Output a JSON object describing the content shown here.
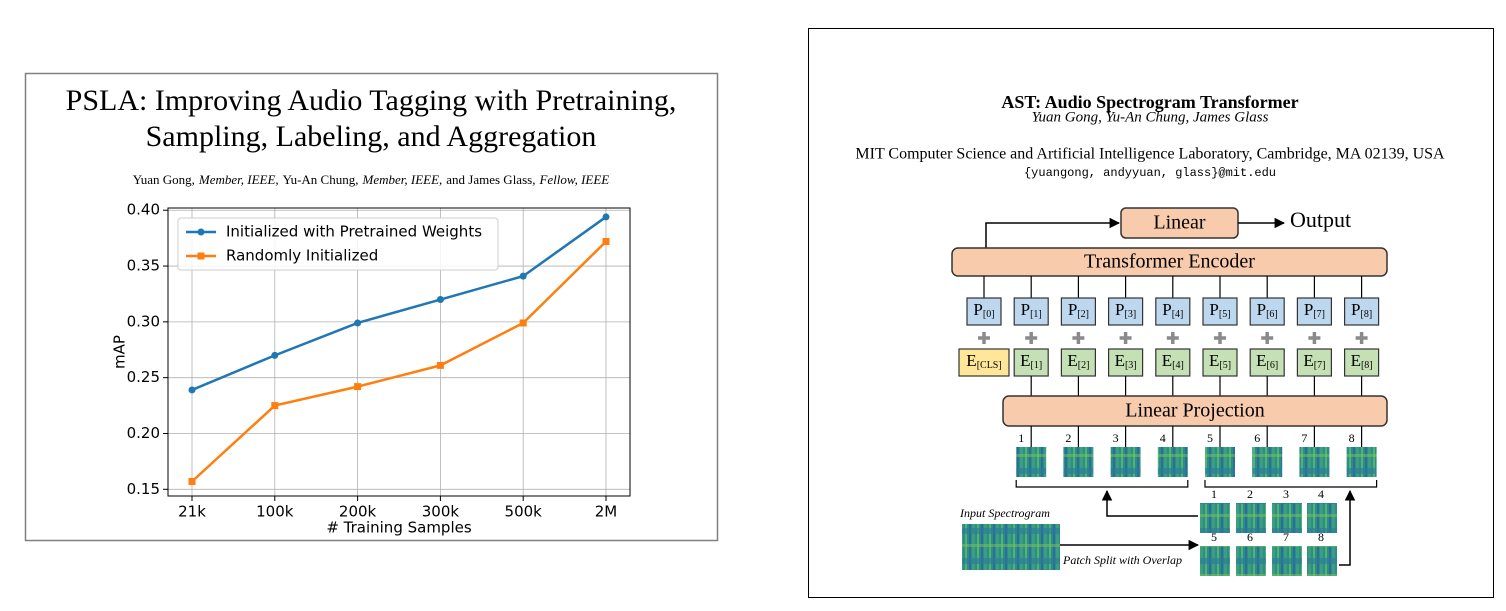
{
  "left": {
    "title": [
      "PSLA: Improving Audio Tagging with Pretraining,",
      "Sampling, Labeling, and Aggregation"
    ],
    "authors": [
      "Yuan Gong,",
      "Member, IEEE,",
      "Yu-An Chung,",
      "Member, IEEE,",
      "and James Glass,",
      "Fellow, IEEE"
    ]
  },
  "chart_data": {
    "type": "line",
    "x_label": "# Training Samples",
    "y_label": "mAP",
    "categories": [
      "21k",
      "100k",
      "200k",
      "300k",
      "500k",
      "2M"
    ],
    "series": [
      {
        "name": "Initialized with Pretrained Weights",
        "color": "#1f77b4",
        "marker": "circle",
        "values": [
          0.239,
          0.27,
          0.299,
          0.32,
          0.341,
          0.394
        ]
      },
      {
        "name": "Randomly Initialized",
        "color": "#ff7f0e",
        "marker": "square",
        "values": [
          0.157,
          0.225,
          0.242,
          0.261,
          0.299,
          0.372
        ]
      }
    ],
    "ylim": [
      0.144,
      0.402
    ],
    "yticks": [
      0.15,
      {
        "value": 0.2,
        "label": "0.20"
      },
      0.25,
      {
        "value": 0.3,
        "label": "0.30"
      },
      0.35,
      {
        "value": 0.4,
        "label": "0.40"
      }
    ],
    "grid": true,
    "legend": "upper left"
  },
  "right": {
    "title": "AST: Audio Spectrogram Transformer",
    "authors": "Yuan Gong, Yu-An Chung, James Glass",
    "affiliation": "MIT Computer Science and Artificial Intelligence Laboratory, Cambridge, MA 02139, USA",
    "email": "{yuangong, andyyuan, glass}@mit.edu",
    "diagram": {
      "head": "Linear",
      "output": "Output",
      "encoder": "Transformer Encoder",
      "projection": "Linear Projection",
      "positions": [
        {
          "base": "P",
          "sub": "[0]"
        },
        {
          "base": "P",
          "sub": "[1]"
        },
        {
          "base": "P",
          "sub": "[2]"
        },
        {
          "base": "P",
          "sub": "[3]"
        },
        {
          "base": "P",
          "sub": "[4]"
        },
        {
          "base": "P",
          "sub": "[5]"
        },
        {
          "base": "P",
          "sub": "[6]"
        },
        {
          "base": "P",
          "sub": "[7]"
        },
        {
          "base": "P",
          "sub": "[8]"
        }
      ],
      "embeddings": [
        {
          "base": "E",
          "sub": "[CLS]"
        },
        {
          "base": "E",
          "sub": "[1]"
        },
        {
          "base": "E",
          "sub": "[2]"
        },
        {
          "base": "E",
          "sub": "[3]"
        },
        {
          "base": "E",
          "sub": "[4]"
        },
        {
          "base": "E",
          "sub": "[5]"
        },
        {
          "base": "E",
          "sub": "[6]"
        },
        {
          "base": "E",
          "sub": "[7]"
        },
        {
          "base": "E",
          "sub": "[8]"
        }
      ],
      "patch_numbers": [
        "1",
        "2",
        "3",
        "4",
        "5",
        "6",
        "7",
        "8"
      ],
      "input_label": "Input Spectrogram",
      "split_label": "Patch Split with Overlap"
    }
  }
}
